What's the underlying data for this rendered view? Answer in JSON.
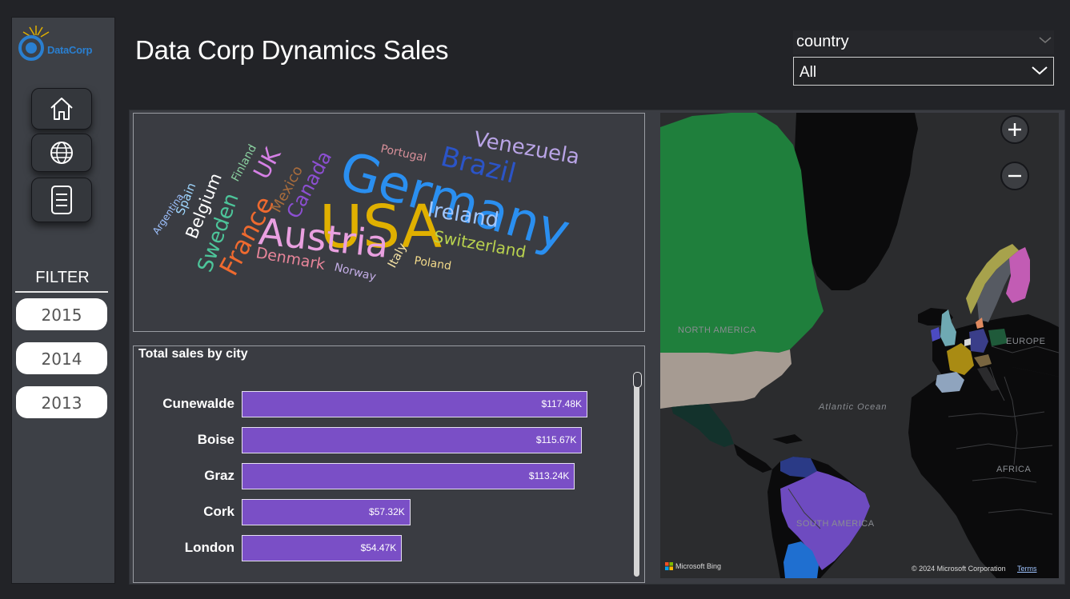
{
  "logo": {
    "text": "DataCorp"
  },
  "header": {
    "title": "Data Corp Dynamics Sales"
  },
  "slicer": {
    "title": "country",
    "selected": "All"
  },
  "sidebar": {
    "nav": [
      {
        "label": "home",
        "icon": "home-icon"
      },
      {
        "label": "globe",
        "icon": "globe-icon"
      },
      {
        "label": "report",
        "icon": "document-icon"
      }
    ],
    "filter_label": "FILTER",
    "years": [
      "2015",
      "2014",
      "2013"
    ]
  },
  "wordcloud": {
    "words": [
      {
        "text": "Germany",
        "color": "#2a8ff0"
      },
      {
        "text": "USA",
        "color": "#e0b000"
      },
      {
        "text": "Austria",
        "color": "#e9a0e0"
      },
      {
        "text": "Brazil",
        "color": "#2b54c7"
      },
      {
        "text": "Venezuela",
        "color": "#b9a4e6"
      },
      {
        "text": "Ireland",
        "color": "#9fc6ff"
      },
      {
        "text": "Switzerland",
        "color": "#b9d24e"
      },
      {
        "text": "France",
        "color": "#ef6a2f"
      },
      {
        "text": "Sweden",
        "color": "#4dc59a"
      },
      {
        "text": "Canada",
        "color": "#8c4fd2"
      },
      {
        "text": "Mexico",
        "color": "#a86c3c"
      },
      {
        "text": "UK",
        "color": "#d680e6"
      },
      {
        "text": "Belgium",
        "color": "#ffffff"
      },
      {
        "text": "Denmark",
        "color": "#e8859a"
      },
      {
        "text": "Portugal",
        "color": "#d8909a"
      },
      {
        "text": "Finland",
        "color": "#8ad0a0"
      },
      {
        "text": "Spain",
        "color": "#9fd7ff"
      },
      {
        "text": "Argentina",
        "color": "#9ec2ff"
      },
      {
        "text": "Norway",
        "color": "#c4aee6"
      },
      {
        "text": "Italy",
        "color": "#f2e0a4"
      },
      {
        "text": "Poland",
        "color": "#f1d98a"
      }
    ]
  },
  "chart_data": {
    "type": "bar",
    "title": "Total sales by city",
    "orientation": "horizontal",
    "categories": [
      "Cunewalde",
      "Boise",
      "Graz",
      "Cork",
      "London"
    ],
    "values": [
      117.48,
      115.67,
      113.24,
      57.32,
      54.47
    ],
    "value_labels": [
      "$117.48K",
      "$115.67K",
      "$113.24K",
      "$57.32K",
      "$54.47K"
    ],
    "bar_color": "#7a4fc6",
    "grid": false
  },
  "map": {
    "labels": {
      "north_america": "NORTH AMERICA",
      "europe": "EUROPE",
      "ocean": "Atlantic Ocean",
      "south_america": "SOUTH AMERICA",
      "africa": "AFRICA"
    },
    "attribution_left": "Microsoft Bing",
    "attribution_right": "© 2024 Microsoft Corporation",
    "terms": "Terms"
  }
}
